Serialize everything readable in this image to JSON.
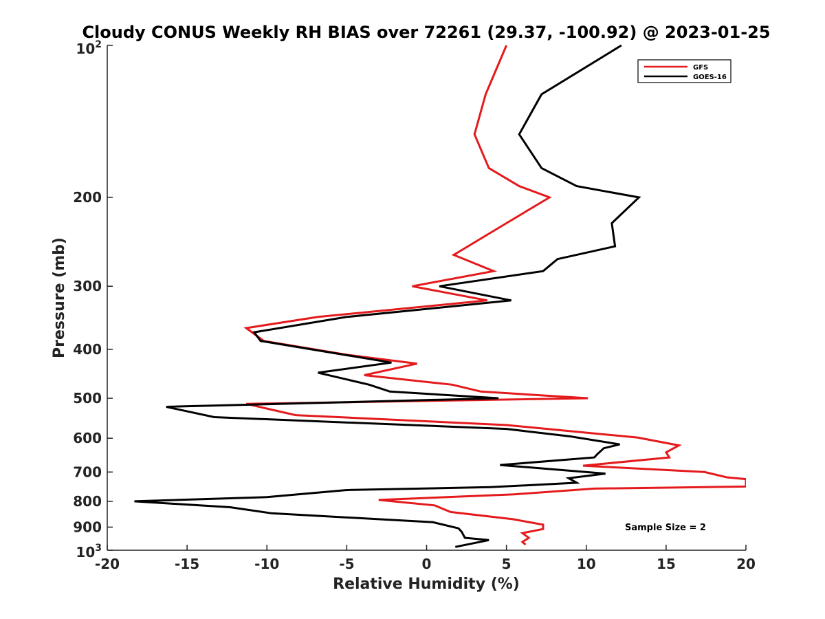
{
  "chart_data": {
    "type": "line",
    "title": "Cloudy CONUS Weekly RH BIAS over 72261 (29.37, -100.92) @ 2023-01-25",
    "xlabel": "Relative Humidity (%)",
    "ylabel": "Pressure (mb)",
    "xlim": [
      -20,
      20
    ],
    "ylim": [
      100,
      1000
    ],
    "y_scale": "log",
    "y_reversed": true,
    "grid": false,
    "legend_position": "top-right",
    "x_ticks": [
      "-20",
      "-15",
      "-10",
      "-5",
      "0",
      "5",
      "10",
      "15",
      "20"
    ],
    "x_tick_values": [
      -20,
      -15,
      -10,
      -5,
      0,
      5,
      10,
      15,
      20
    ],
    "y_tick_labels": [
      "200",
      "300",
      "400",
      "500",
      "600",
      "700",
      "800",
      "900"
    ],
    "y_tick_values": [
      200,
      300,
      400,
      500,
      600,
      700,
      800,
      900
    ],
    "y_top_label": {
      "base": "10",
      "exp": "2"
    },
    "y_bottom_label": {
      "base": "10",
      "exp": "3"
    },
    "annotation": "Sample Size = 2",
    "series": [
      {
        "name": "GFS",
        "color": "#e41a1c",
        "points": [
          [
            5.0,
            100
          ],
          [
            3.7,
            125
          ],
          [
            3.0,
            150
          ],
          [
            3.9,
            175
          ],
          [
            5.8,
            190
          ],
          [
            7.7,
            200
          ],
          [
            5.0,
            225
          ],
          [
            1.7,
            260
          ],
          [
            4.2,
            280
          ],
          [
            -0.9,
            300
          ],
          [
            3.8,
            320
          ],
          [
            -6.8,
            345
          ],
          [
            -11.3,
            363
          ],
          [
            -10.2,
            385
          ],
          [
            -5.0,
            410
          ],
          [
            -0.6,
            427
          ],
          [
            -3.9,
            450
          ],
          [
            1.6,
            470
          ],
          [
            3.4,
            485
          ],
          [
            10.1,
            500
          ],
          [
            -11.3,
            513
          ],
          [
            -8.2,
            540
          ],
          [
            5.0,
            565
          ],
          [
            10.0,
            585
          ],
          [
            13.2,
            598
          ],
          [
            15.8,
            620
          ],
          [
            15.0,
            640
          ],
          [
            15.2,
            655
          ],
          [
            9.8,
            680
          ],
          [
            17.4,
            700
          ],
          [
            18.8,
            717
          ],
          [
            20.0,
            723
          ],
          [
            20.0,
            748
          ],
          [
            10.5,
            755
          ],
          [
            5.5,
            775
          ],
          [
            -3.0,
            795
          ],
          [
            0.5,
            815
          ],
          [
            1.5,
            840
          ],
          [
            5.4,
            868
          ],
          [
            7.3,
            890
          ],
          [
            7.3,
            908
          ],
          [
            6.0,
            925
          ],
          [
            6.4,
            945
          ],
          [
            6.0,
            963
          ],
          [
            6.2,
            975
          ]
        ]
      },
      {
        "name": "GOES-16",
        "color": "#000000",
        "points": [
          [
            12.2,
            100
          ],
          [
            7.2,
            125
          ],
          [
            5.8,
            150
          ],
          [
            7.2,
            175
          ],
          [
            9.4,
            190
          ],
          [
            13.3,
            200
          ],
          [
            11.6,
            225
          ],
          [
            11.8,
            250
          ],
          [
            8.2,
            265
          ],
          [
            7.3,
            280
          ],
          [
            0.8,
            300
          ],
          [
            5.3,
            320
          ],
          [
            -5.0,
            345
          ],
          [
            -10.8,
            370
          ],
          [
            -10.4,
            385
          ],
          [
            -2.2,
            425
          ],
          [
            -6.8,
            445
          ],
          [
            -3.6,
            470
          ],
          [
            -2.3,
            485
          ],
          [
            4.5,
            500
          ],
          [
            -16.3,
            520
          ],
          [
            -13.3,
            545
          ],
          [
            5.0,
            575
          ],
          [
            9.0,
            595
          ],
          [
            12.1,
            617
          ],
          [
            11.1,
            628
          ],
          [
            10.7,
            645
          ],
          [
            10.5,
            655
          ],
          [
            4.6,
            678
          ],
          [
            11.2,
            705
          ],
          [
            8.9,
            720
          ],
          [
            9.4,
            735
          ],
          [
            4.0,
            750
          ],
          [
            -5.0,
            760
          ],
          [
            -10.0,
            785
          ],
          [
            -18.3,
            800
          ],
          [
            -12.3,
            822
          ],
          [
            -9.7,
            845
          ],
          [
            0.4,
            880
          ],
          [
            2.0,
            905
          ],
          [
            2.2,
            920
          ],
          [
            2.4,
            945
          ],
          [
            3.9,
            955
          ],
          [
            1.8,
            985
          ]
        ]
      }
    ]
  }
}
